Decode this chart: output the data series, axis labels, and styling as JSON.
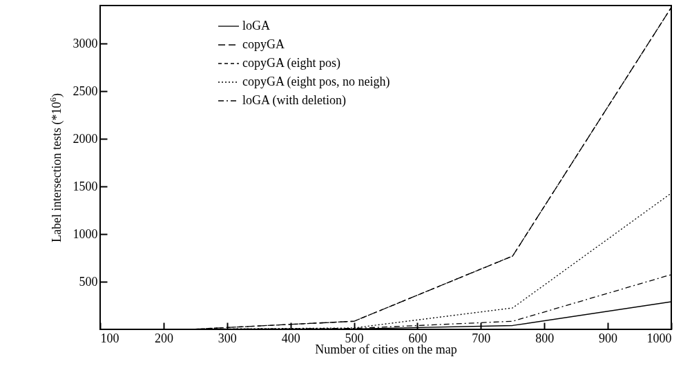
{
  "chart_data": {
    "type": "line",
    "xlabel": "Number of cities on the map",
    "ylabel": "Label intersection tests (*10$^{6}$)",
    "x": [
      250,
      500,
      750,
      1000
    ],
    "series": [
      {
        "name": "loGA",
        "color": "#000000",
        "line_style": "solid",
        "values": [
          2,
          5,
          40,
          290
        ]
      },
      {
        "name": "copyGA",
        "color": "#000000",
        "line_style": "dashed",
        "values": [
          3,
          85,
          770,
          3380
        ]
      },
      {
        "name": "copyGA (eight pos)",
        "color": "#000000",
        "line_style": "dashed",
        "values": [
          3,
          85,
          770,
          3380
        ]
      },
      {
        "name": "copyGA (eight pos, no neigh)",
        "color": "#000000",
        "line_style": "dotted",
        "values": [
          2,
          15,
          225,
          1430
        ]
      },
      {
        "name": "loGA (with deletion)",
        "color": "#000000",
        "line_style": "dashdot",
        "values": [
          2,
          10,
          85,
          575
        ]
      }
    ],
    "xlim": [
      100,
      1000
    ],
    "ylim": [
      0,
      3400
    ],
    "xticks": [
      100,
      200,
      300,
      400,
      500,
      600,
      700,
      800,
      900,
      1000
    ],
    "yticks": [
      500,
      1000,
      1500,
      2000,
      2500,
      3000
    ],
    "grid": false,
    "legend": "top",
    "marker": "none"
  }
}
